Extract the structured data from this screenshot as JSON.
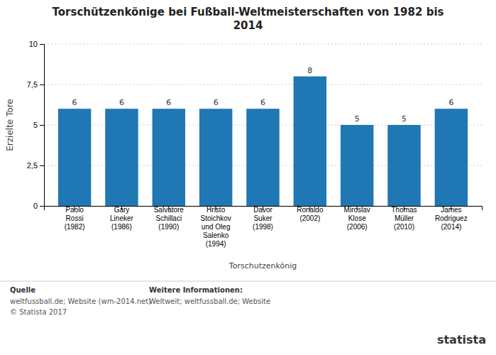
{
  "chart_data": {
    "type": "bar",
    "title": "Torschützenkönige bei Fußball-Weltmeisterschaften von 1982 bis\n2014",
    "categories": [
      "Paolo\nRossi\n(1982)",
      "Gary\nLineker\n(1986)",
      "Salvatore\nSchillaci\n(1990)",
      "Hristo\nStoichkov\nund Oleg\nSalenko\n(1994)",
      "Davor\nSuker\n(1998)",
      "Ronaldo\n(2002)",
      "Miroslav\nKlose\n(2006)",
      "Thomas\nMüller\n(2010)",
      "James\nRodriguez\n(2014)"
    ],
    "values": [
      6,
      6,
      6,
      6,
      6,
      8,
      5,
      5,
      6
    ],
    "ylabel": "Erzielte Tore",
    "xlabel": "Torschutzenkönig",
    "ylim": [
      0,
      10
    ],
    "yticks": [
      0,
      {
        "value": 2.5,
        "label": "2,5"
      },
      5,
      {
        "value": 7.5,
        "label": "7,5"
      },
      10
    ],
    "grid": true,
    "data_labels": true,
    "annotations": [
      "Quelle",
      "weltfussball.de; Website (wm-2014.net)\n© Statista 2017",
      "Weitere Informationen:",
      "Weltweit; weltfussball.de; Website",
      "statista"
    ]
  }
}
